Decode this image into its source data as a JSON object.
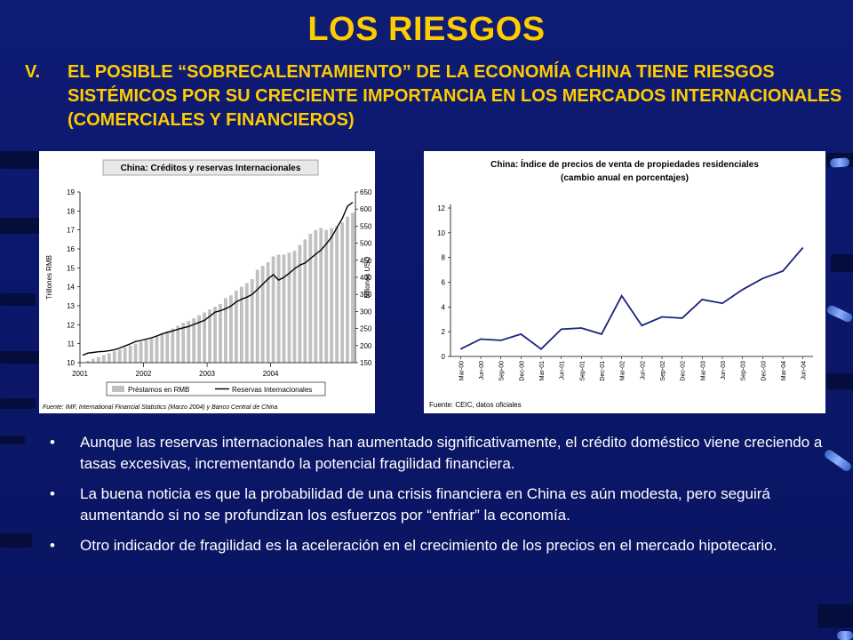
{
  "slide": {
    "title": "LOS RIESGOS",
    "subtitle_number": "V.",
    "subtitle": "EL POSIBLE “SOBRECALENTAMIENTO” DE LA ECONOMÍA CHINA TIENE RIESGOS SISTÉMICOS POR SU CRECIENTE IMPORTANCIA EN LOS MERCADOS INTERNACIONALES (COMERCIALES Y FINANCIEROS)",
    "bullet_symbol": "•",
    "bullets": [
      "Aunque las reservas internacionales han aumentado significativamente, el crédito doméstico viene creciendo a tasas excesivas, incrementando la potencial fragilidad financiera.",
      "La buena noticia es que la probabilidad de una crisis financiera en China es aún modesta, pero seguirá aumentando si no se profundizan los esfuerzos por “enfriar” la economía.",
      "Otro indicador de fragilidad es la aceleración en el crecimiento de los precios en el mercado hipotecario."
    ]
  },
  "chart_data": [
    {
      "type": "bar",
      "title": "China: Créditos y reservas Internacionales",
      "ylabel": "Trillones RMB",
      "y2label": "Billones USD",
      "ylim": [
        10,
        19
      ],
      "y2lim": [
        150,
        650
      ],
      "yticks": [
        10,
        11,
        12,
        13,
        14,
        15,
        16,
        17,
        18,
        19
      ],
      "y2ticks": [
        150,
        200,
        250,
        300,
        350,
        400,
        450,
        500,
        550,
        600,
        650
      ],
      "xticks": [
        "2001",
        "2002",
        "2003",
        "2004"
      ],
      "source": "Fuente: IMF, International Financial Statistics (Marzo 2004) y Banco Central de China",
      "series": [
        {
          "name": "Préstamos en RMB",
          "type": "bar",
          "axis": "left",
          "color": "#c0c0c0",
          "values": [
            10.0,
            10.1,
            10.2,
            10.3,
            10.4,
            10.5,
            10.6,
            10.7,
            10.8,
            10.9,
            11.0,
            11.1,
            11.2,
            11.3,
            11.4,
            11.5,
            11.65,
            11.8,
            11.95,
            12.1,
            12.2,
            12.35,
            12.5,
            12.65,
            12.8,
            12.95,
            13.1,
            13.4,
            13.55,
            13.8,
            14.0,
            14.2,
            14.4,
            14.9,
            15.1,
            15.3,
            15.6,
            15.7,
            15.7,
            15.8,
            15.9,
            16.2,
            16.5,
            16.8,
            17.0,
            17.1,
            17.0,
            17.1,
            17.2,
            17.4,
            17.7,
            17.9
          ]
        },
        {
          "name": "Reservas Internacionales",
          "type": "line",
          "axis": "right",
          "color": "#000000",
          "values": [
            172,
            178,
            180,
            182,
            183,
            185,
            188,
            193,
            199,
            205,
            212,
            215,
            219,
            223,
            228,
            234,
            239,
            243,
            248,
            252,
            256,
            262,
            268,
            274,
            286,
            298,
            302,
            308,
            316,
            328,
            336,
            342,
            350,
            364,
            380,
            395,
            408,
            392,
            400,
            412,
            425,
            436,
            442,
            455,
            468,
            480,
            498,
            518,
            545,
            572,
            608,
            620
          ]
        }
      ]
    },
    {
      "type": "line",
      "title": "China: Índice de precios de venta de propiedades residenciales",
      "subtitle": "(cambio anual en porcentajes)",
      "ylim": [
        0,
        12
      ],
      "yticks": [
        0,
        2,
        4,
        6,
        8,
        10,
        12
      ],
      "categories": [
        "Mar-00",
        "Jun-00",
        "Sep-00",
        "Dec-00",
        "Mar-01",
        "Jun-01",
        "Sep-01",
        "Dec-01",
        "Mar-02",
        "Jun-02",
        "Sep-02",
        "Dec-02",
        "Mar-03",
        "Jun-03",
        "Sep-03",
        "Dec-03",
        "Mar-04",
        "Jun-04"
      ],
      "series": [
        {
          "color": "#1a237e",
          "values": [
            0.6,
            1.4,
            1.3,
            1.8,
            0.6,
            2.2,
            2.3,
            1.8,
            4.9,
            2.5,
            3.2,
            3.1,
            4.6,
            4.3,
            5.4,
            6.3,
            6.9,
            8.8
          ]
        }
      ],
      "source": "Fuente: CEIC, datos oficiales"
    }
  ]
}
